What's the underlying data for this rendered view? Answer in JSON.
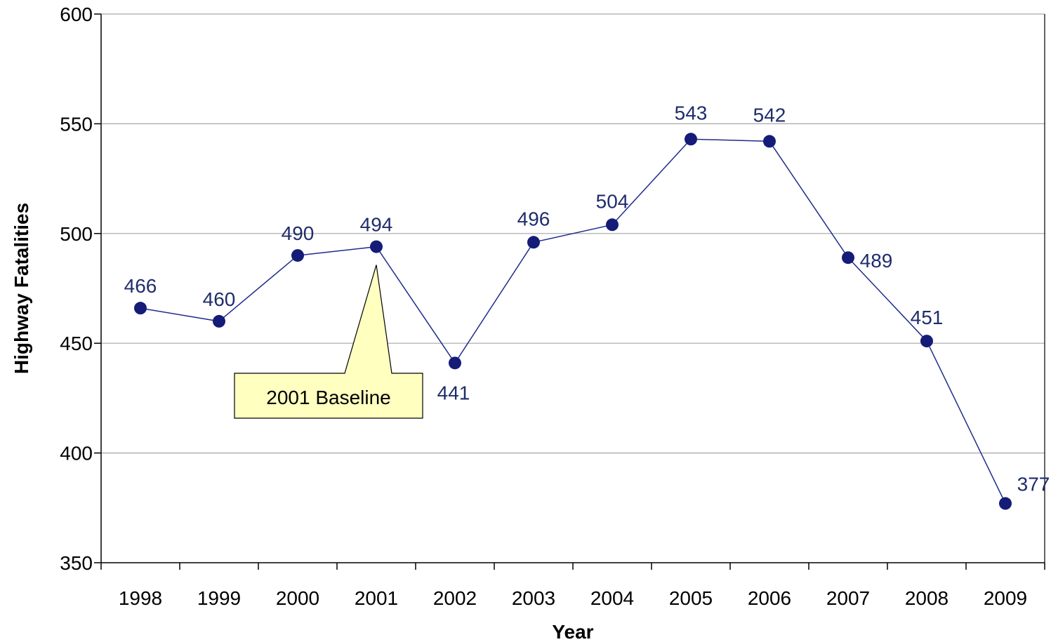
{
  "chart_data": {
    "type": "line",
    "title": "",
    "xlabel": "Year",
    "ylabel": "Highway Fatalities",
    "categories": [
      "1998",
      "1999",
      "2000",
      "2001",
      "2002",
      "2003",
      "2004",
      "2005",
      "2006",
      "2007",
      "2008",
      "2009"
    ],
    "series": [
      {
        "values": [
          466,
          460,
          490,
          494,
          441,
          496,
          504,
          543,
          542,
          489,
          451,
          377
        ]
      }
    ],
    "data_labels": [
      "466",
      "460",
      "490",
      "494",
      "441",
      "496",
      "504",
      "543",
      "542",
      "489",
      "451",
      "377"
    ],
    "ylim": [
      350,
      600
    ],
    "yticks": [
      350,
      400,
      450,
      500,
      550,
      600
    ],
    "ytick_labels": [
      "350",
      "400",
      "450",
      "500",
      "550",
      "600"
    ],
    "grid": true,
    "legend": "none",
    "annotation": {
      "text": "2001 Baseline",
      "target_category": "2001"
    },
    "colors": {
      "line": "#1f2d8a",
      "marker": "#141c78",
      "label": "#1f2d6b",
      "callout_fill": "#ffffc0",
      "gridline": "#a6a6a6"
    }
  }
}
